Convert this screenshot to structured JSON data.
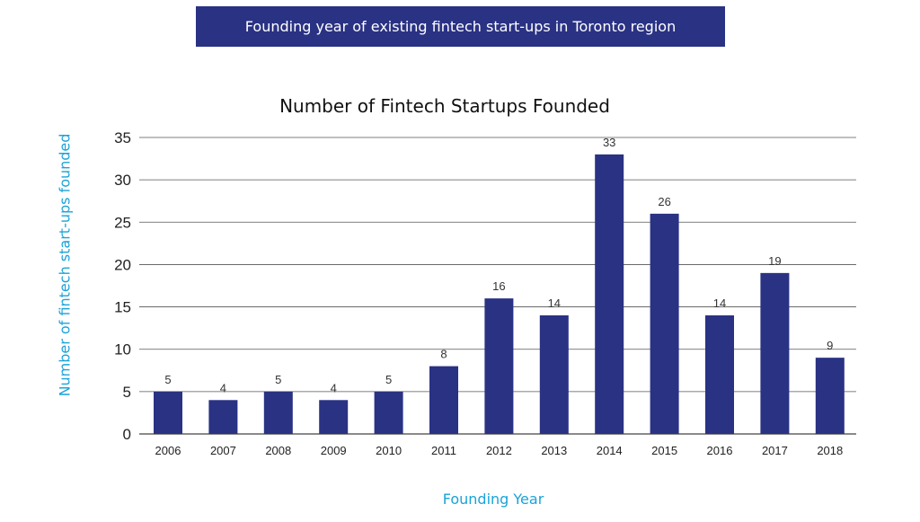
{
  "header": {
    "banner_text": "Founding year of existing fintech start-ups in Toronto region"
  },
  "colors": {
    "banner_bg": "#2a3284",
    "bar": "#2a3284",
    "axis_label": "#1aa3d9",
    "grid": "#555555"
  },
  "chart_data": {
    "type": "bar",
    "title": "Number of Fintech Startups Founded",
    "xlabel": "Founding Year",
    "ylabel": "Number of fintech start-ups founded",
    "categories": [
      "2006",
      "2007",
      "2008",
      "2009",
      "2010",
      "2011",
      "2012",
      "2013",
      "2014",
      "2015",
      "2016",
      "2017",
      "2018"
    ],
    "values": [
      5,
      4,
      5,
      4,
      5,
      8,
      16,
      14,
      33,
      26,
      14,
      19,
      9
    ],
    "ylim": [
      0,
      35
    ],
    "yticks": [
      0,
      5,
      10,
      15,
      20,
      25,
      30,
      35
    ],
    "grid": true,
    "legend": "none",
    "data_labels": true
  }
}
